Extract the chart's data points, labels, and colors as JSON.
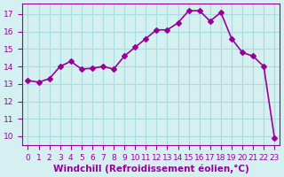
{
  "x_values": [
    0,
    1,
    2,
    3,
    4,
    5,
    6,
    7,
    8,
    9,
    10,
    11,
    12,
    13,
    14,
    15,
    16,
    17,
    18,
    19,
    20,
    21,
    22,
    23
  ],
  "y_values": [
    13.2,
    13.1,
    13.3,
    14.0,
    14.3,
    13.85,
    13.9,
    14.0,
    13.85,
    14.6,
    15.1,
    15.6,
    16.1,
    16.1,
    16.5,
    17.2,
    17.2,
    16.6,
    17.1,
    15.6,
    14.8,
    14.6,
    14.0,
    9.9
  ],
  "line_color": "#990099",
  "marker": "D",
  "marker_size": 3,
  "bg_color": "#d4f0f0",
  "grid_color": "#aadddd",
  "xlabel": "Windchill (Refroidissement éolien,°C)",
  "xlabel_color": "#990099",
  "ylabel_ticks": [
    10,
    11,
    12,
    13,
    14,
    15,
    16,
    17
  ],
  "ylim": [
    9.5,
    17.6
  ],
  "xlim": [
    -0.5,
    23.5
  ],
  "xtick_labels": [
    "0",
    "1",
    "2",
    "3",
    "4",
    "5",
    "6",
    "7",
    "8",
    "9",
    "10",
    "11",
    "12",
    "13",
    "14",
    "15",
    "16",
    "17",
    "18",
    "19",
    "20",
    "21",
    "22",
    "23"
  ],
  "tick_color": "#990099",
  "tick_fontsize": 6.5,
  "xlabel_fontsize": 7.5,
  "line_width": 1.2
}
